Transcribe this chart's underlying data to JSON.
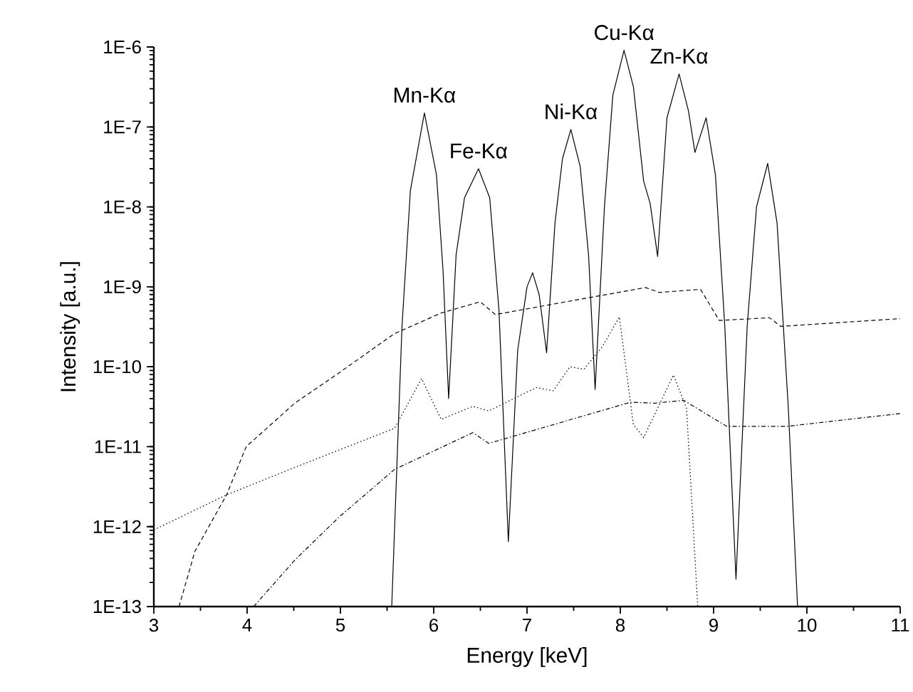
{
  "chart_data": {
    "type": "line",
    "xlabel": "Energy [keV]",
    "ylabel": "Intensity [a.u.]",
    "log": "y",
    "xlim": [
      3,
      11
    ],
    "xticks": [
      3,
      4,
      5,
      6,
      7,
      8,
      9,
      10,
      11
    ],
    "ylim": [
      1e-13,
      1e-06
    ],
    "yticks": [
      {
        "value": 1e-13,
        "label": "1E-13"
      },
      {
        "value": 1e-12,
        "label": "1E-12"
      },
      {
        "value": 1e-11,
        "label": "1E-11"
      },
      {
        "value": 1e-10,
        "label": "1E-10"
      },
      {
        "value": 1e-09,
        "label": "1E-9"
      },
      {
        "value": 1e-08,
        "label": "1E-8"
      },
      {
        "value": 1e-07,
        "label": "1E-7"
      },
      {
        "value": 1e-06,
        "label": "1E-6"
      }
    ],
    "grid": false,
    "marker": "none",
    "series": [
      {
        "color": "#000000",
        "line_style": "solid",
        "x": [
          5.55,
          5.66,
          5.75,
          5.9,
          6.03,
          6.1,
          6.16,
          6.24,
          6.33,
          6.48,
          6.6,
          6.7,
          6.8,
          6.9,
          7.0,
          7.06,
          7.13,
          7.21,
          7.3,
          7.38,
          7.47,
          7.57,
          7.66,
          7.73,
          7.83,
          7.92,
          8.04,
          8.14,
          8.25,
          8.32,
          8.4,
          8.5,
          8.63,
          8.73,
          8.8,
          8.92,
          9.02,
          9.12,
          9.24,
          9.36,
          9.46,
          9.58,
          9.68,
          9.8,
          9.9
        ],
        "values": [
          1e-13,
          3.2e-10,
          1.6e-08,
          1.5e-07,
          2.5e-08,
          1.6e-09,
          4e-11,
          2.5e-09,
          1.3e-08,
          3e-08,
          1.3e-08,
          5e-10,
          6.5e-13,
          1.6e-10,
          1e-09,
          1.5e-09,
          8e-10,
          1.5e-10,
          6.3e-09,
          4e-08,
          9.3e-08,
          3.2e-08,
          2.5e-09,
          5.2e-11,
          1e-08,
          2.5e-07,
          9.1e-07,
          3.2e-07,
          2.1e-08,
          1.1e-08,
          2.4e-09,
          1.3e-07,
          4.6e-07,
          1.6e-07,
          4.8e-08,
          1.3e-07,
          2.5e-08,
          3.2e-10,
          2.2e-13,
          3.2e-10,
          1e-08,
          3.5e-08,
          6.3e-09,
          3.2e-11,
          1e-13
        ]
      },
      {
        "color": "#000000",
        "line_style": "dashed",
        "x": [
          3.27,
          3.44,
          3.78,
          3.99,
          4.51,
          4.98,
          5.58,
          6.08,
          6.5,
          6.66,
          8.27,
          8.42,
          8.86,
          9.06,
          9.6,
          9.72,
          11.0
        ],
        "values": [
          1e-13,
          4.9e-13,
          2.5e-12,
          1e-11,
          3.5e-11,
          8.3e-11,
          2.6e-10,
          4.7e-10,
          6.5e-10,
          4.5e-10,
          9.8e-10,
          8.5e-10,
          9.3e-10,
          3.8e-10,
          4.1e-10,
          3.2e-10,
          4e-10
        ]
      },
      {
        "color": "#000000",
        "line_style": "dotted",
        "x": [
          3.0,
          3.78,
          4.51,
          5.58,
          5.87,
          6.08,
          6.42,
          6.59,
          7.1,
          7.28,
          7.46,
          7.61,
          7.81,
          7.99,
          8.14,
          8.25,
          8.57,
          8.71,
          8.83
        ],
        "values": [
          9.1e-13,
          2.5e-12,
          5.5e-12,
          1.7e-11,
          7.1e-11,
          2.2e-11,
          3.2e-11,
          2.8e-11,
          5.5e-11,
          5e-11,
          1e-10,
          9.3e-11,
          1.8e-10,
          4.2e-10,
          1.9e-11,
          1.3e-11,
          7.9e-11,
          3e-11,
          1e-13
        ]
      },
      {
        "color": "#000000",
        "line_style": "dashdot",
        "x": [
          4.07,
          4.51,
          4.98,
          5.58,
          6.42,
          6.59,
          8.11,
          8.37,
          8.68,
          9.14,
          9.79,
          11.0
        ],
        "values": [
          1e-13,
          3.8e-13,
          1.3e-12,
          5.2e-12,
          1.5e-11,
          1.1e-11,
          3.6e-11,
          3.5e-11,
          3.8e-11,
          1.8e-11,
          1.8e-11,
          2.6e-11
        ]
      }
    ],
    "annotations": [
      {
        "text": "Mn-Kα",
        "x": 5.9,
        "y": 1.5e-07
      },
      {
        "text": "Fe-Kα",
        "x": 6.48,
        "y": 3e-08
      },
      {
        "text": "Ni-Kα",
        "x": 7.47,
        "y": 9.3e-08
      },
      {
        "text": "Cu-Kα",
        "x": 8.04,
        "y": 9.1e-07
      },
      {
        "text": "Zn-Kα",
        "x": 8.63,
        "y": 4.6e-07
      }
    ]
  }
}
